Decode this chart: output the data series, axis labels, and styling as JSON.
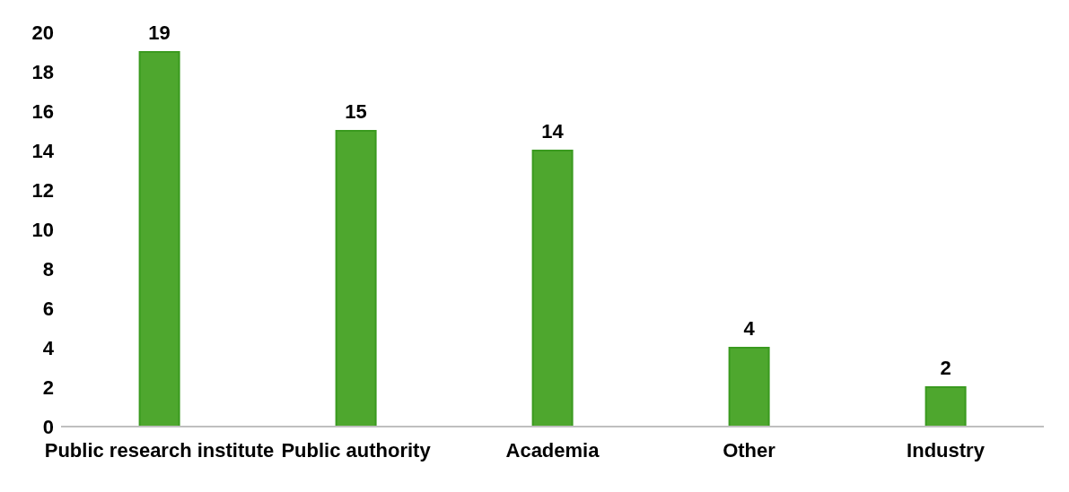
{
  "chart_data": {
    "type": "bar",
    "categories": [
      "Public research institute",
      "Public authority",
      "Academia",
      "Other",
      "Industry"
    ],
    "values": [
      19,
      15,
      14,
      4,
      2
    ],
    "color": "#4ea72e",
    "ylim": [
      0,
      20
    ],
    "yticks": [
      0,
      2,
      4,
      6,
      8,
      10,
      12,
      14,
      16,
      18,
      20
    ],
    "grid": false,
    "data_labels": true
  }
}
